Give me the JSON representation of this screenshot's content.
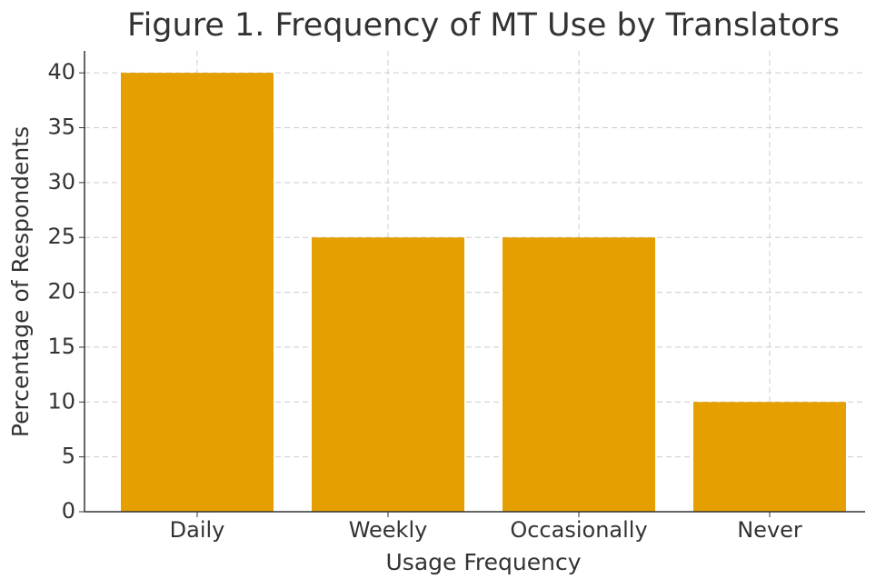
{
  "chart_data": {
    "type": "bar",
    "title": "Figure 1. Frequency of MT Use by Translators",
    "xlabel": "Usage Frequency",
    "ylabel": "Percentage of Respondents",
    "categories": [
      "Daily",
      "Weekly",
      "Occasionally",
      "Never"
    ],
    "values": [
      40,
      25,
      25,
      10
    ],
    "color": "#e69f00",
    "ylim": [
      0,
      42
    ],
    "yticks": [
      0,
      5,
      10,
      15,
      20,
      25,
      30,
      35,
      40
    ],
    "grid": true
  }
}
